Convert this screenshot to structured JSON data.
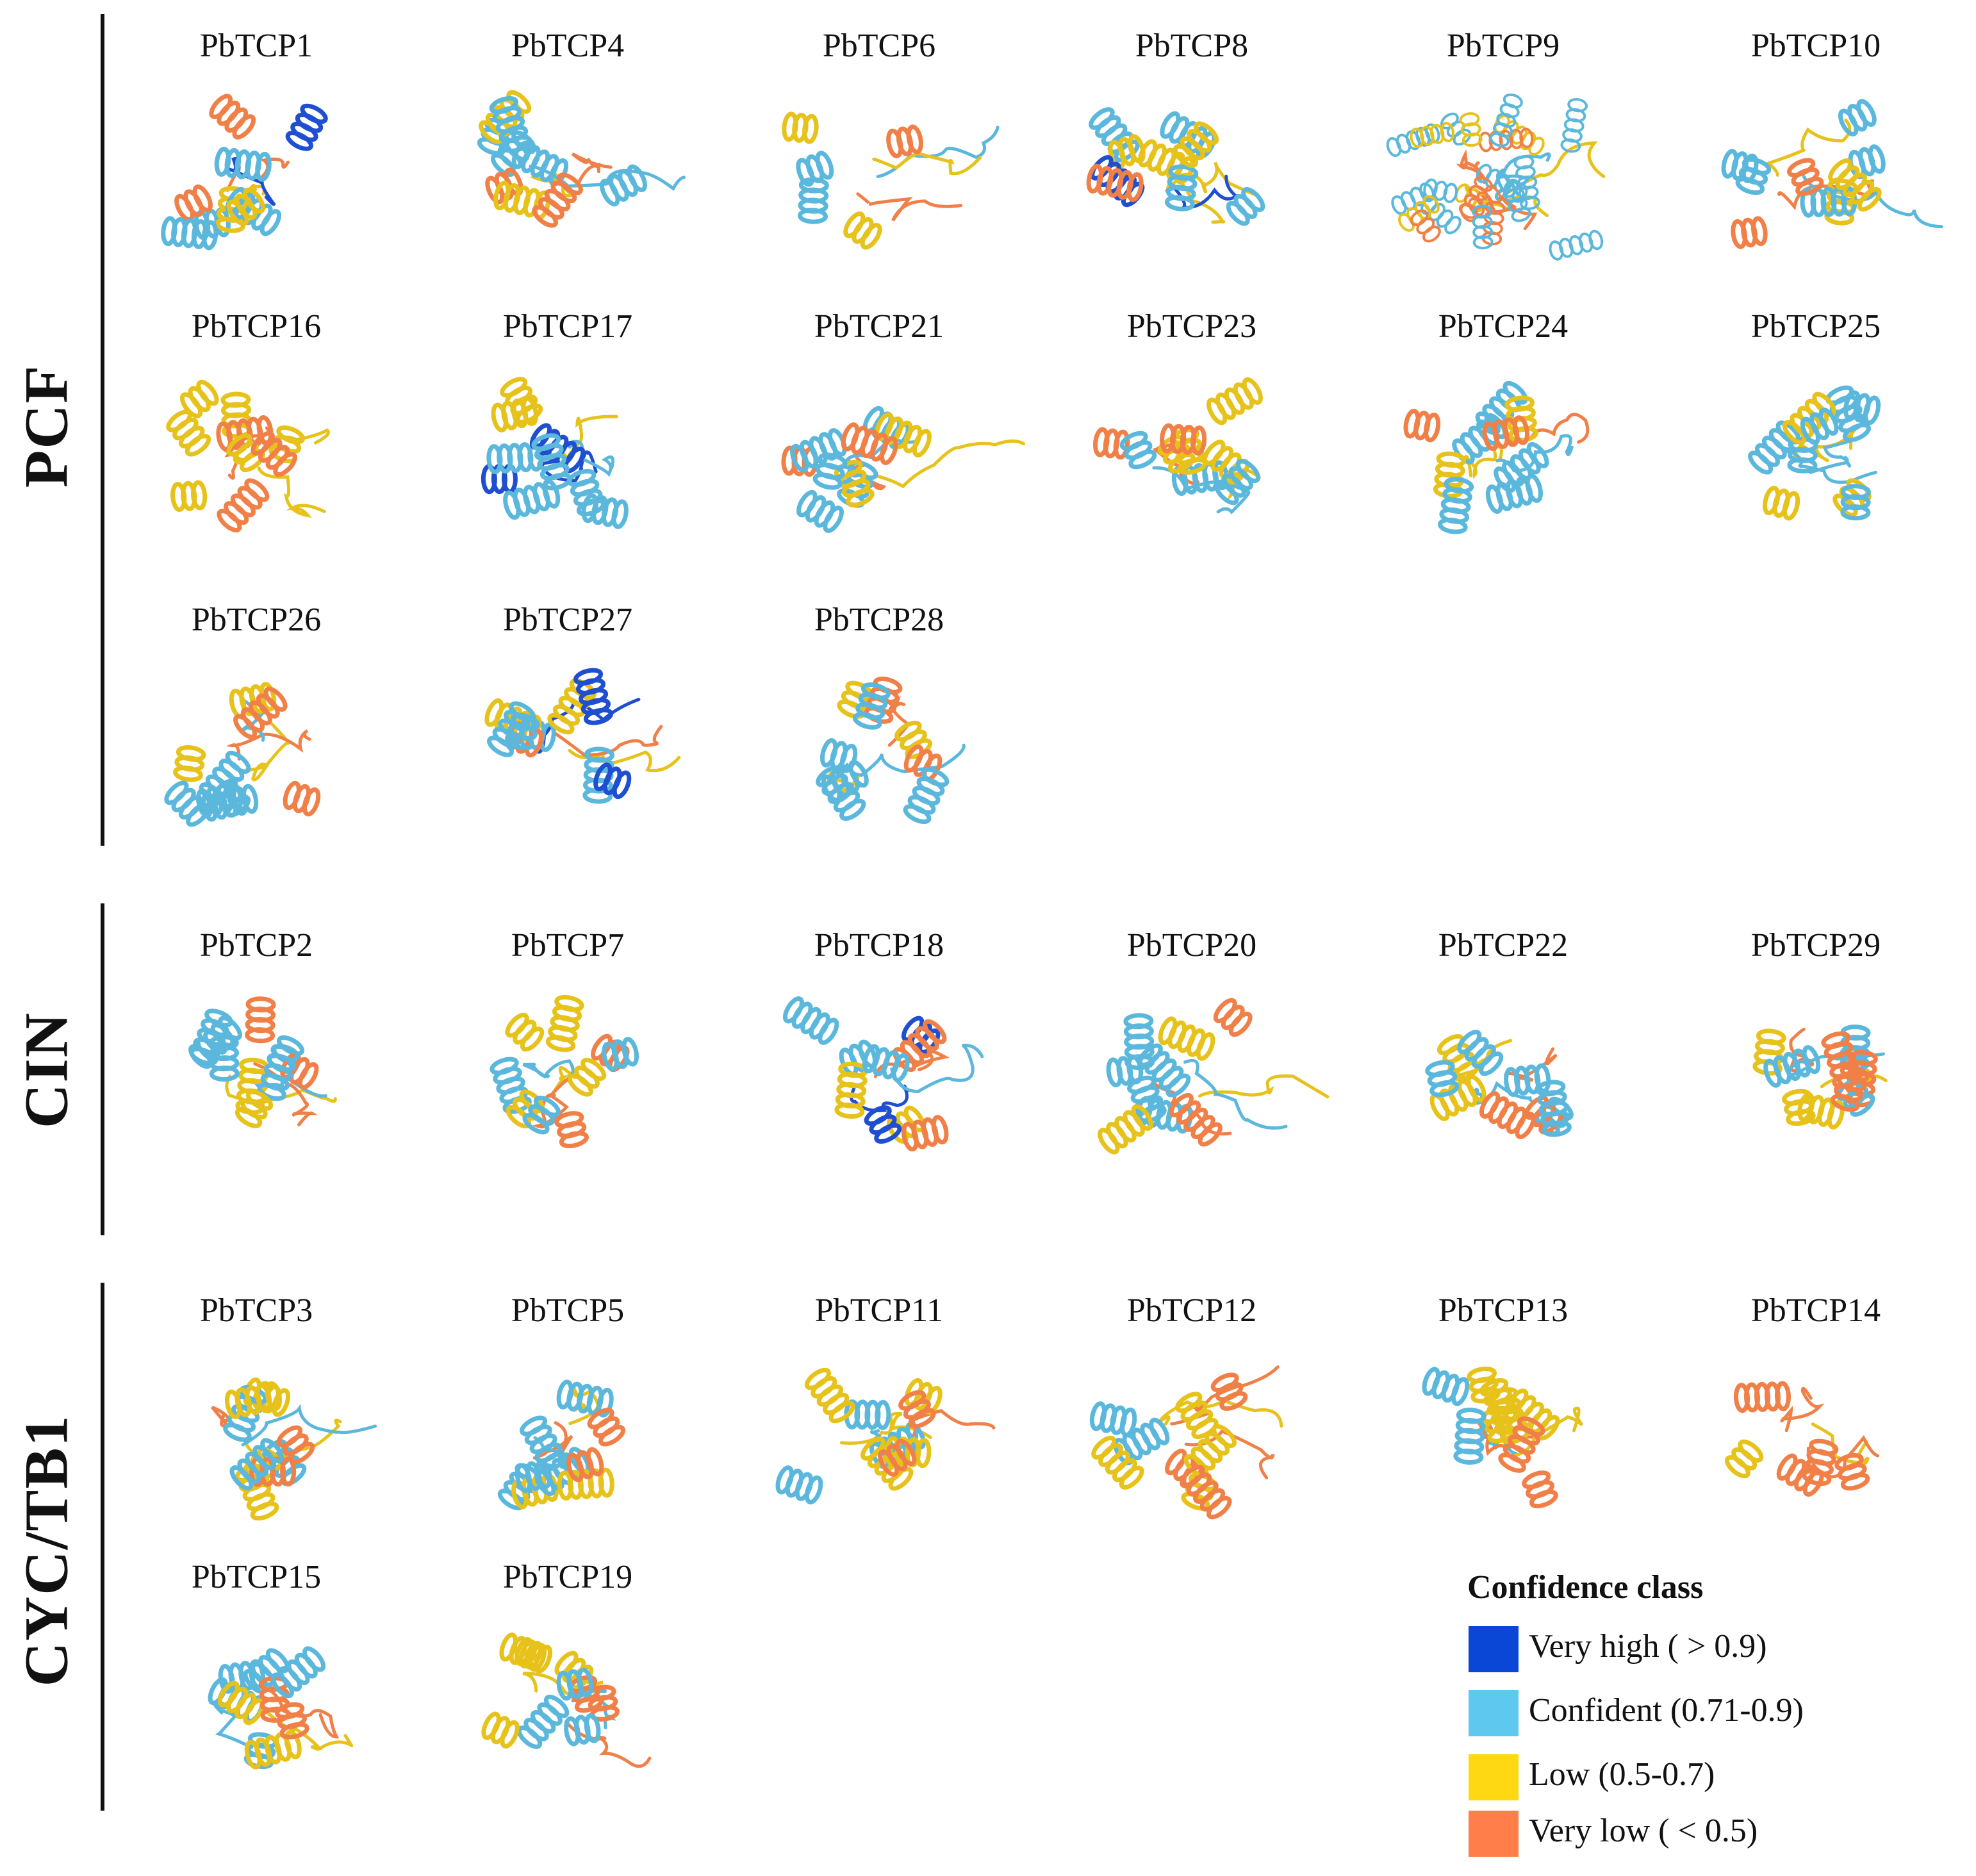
{
  "groups": [
    {
      "name": "PCF"
    },
    {
      "name": "CIN"
    },
    {
      "name": "CYC/TB1"
    }
  ],
  "proteins": [
    {
      "id": "PbTCP1",
      "style": "blue-core",
      "colors": [
        "#5bb8dc",
        "#5bb8dc",
        "#e6c21a",
        "#f08048",
        "#1f4fd0"
      ]
    },
    {
      "id": "PbTCP4",
      "style": "blue-core",
      "colors": [
        "#5bb8dc",
        "#5bb8dc",
        "#e6c21a",
        "#f08048"
      ]
    },
    {
      "id": "PbTCP6",
      "style": "sparse",
      "colors": [
        "#5bb8dc",
        "#e6c21a",
        "#f08048"
      ]
    },
    {
      "id": "PbTCP8",
      "style": "blue-core",
      "colors": [
        "#5bb8dc",
        "#5bb8dc",
        "#e6c21a",
        "#e6c21a",
        "#1f4fd0",
        "#f08048"
      ]
    },
    {
      "id": "PbTCP9",
      "style": "dense",
      "colors": [
        "#5bb8dc",
        "#5bb8dc",
        "#e6c21a",
        "#f08048"
      ]
    },
    {
      "id": "PbTCP10",
      "style": "blue-core",
      "colors": [
        "#5bb8dc",
        "#5bb8dc",
        "#e6c21a",
        "#f08048"
      ]
    },
    {
      "id": "PbTCP16",
      "style": "yellow-core",
      "colors": [
        "#e6c21a",
        "#e6c21a",
        "#f08048"
      ]
    },
    {
      "id": "PbTCP17",
      "style": "blue-core",
      "colors": [
        "#5bb8dc",
        "#5bb8dc",
        "#e6c21a",
        "#1f4fd0"
      ]
    },
    {
      "id": "PbTCP21",
      "style": "blue-core",
      "colors": [
        "#5bb8dc",
        "#5bb8dc",
        "#e6c21a",
        "#f08048"
      ]
    },
    {
      "id": "PbTCP23",
      "style": "blue-core",
      "colors": [
        "#5bb8dc",
        "#e6c21a",
        "#e6c21a",
        "#f08048"
      ]
    },
    {
      "id": "PbTCP24",
      "style": "blue-core",
      "colors": [
        "#5bb8dc",
        "#5bb8dc",
        "#e6c21a",
        "#f08048"
      ]
    },
    {
      "id": "PbTCP25",
      "style": "blue-core",
      "colors": [
        "#5bb8dc",
        "#5bb8dc",
        "#e6c21a"
      ]
    },
    {
      "id": "PbTCP26",
      "style": "blue-core",
      "colors": [
        "#5bb8dc",
        "#5bb8dc",
        "#e6c21a",
        "#f08048"
      ]
    },
    {
      "id": "PbTCP27",
      "style": "blue-core",
      "colors": [
        "#5bb8dc",
        "#5bb8dc",
        "#e6c21a",
        "#1f4fd0",
        "#f08048"
      ]
    },
    {
      "id": "PbTCP28",
      "style": "blue-core",
      "colors": [
        "#5bb8dc",
        "#5bb8dc",
        "#e6c21a",
        "#f08048"
      ]
    },
    {
      "id": "PbTCP2",
      "style": "blue-core",
      "colors": [
        "#5bb8dc",
        "#5bb8dc",
        "#e6c21a",
        "#f08048"
      ]
    },
    {
      "id": "PbTCP7",
      "style": "blue-core",
      "colors": [
        "#5bb8dc",
        "#e6c21a",
        "#e6c21a",
        "#f08048"
      ]
    },
    {
      "id": "PbTCP18",
      "style": "blue-core",
      "colors": [
        "#5bb8dc",
        "#e6c21a",
        "#f08048",
        "#1f4fd0"
      ]
    },
    {
      "id": "PbTCP20",
      "style": "blue-core",
      "colors": [
        "#5bb8dc",
        "#5bb8dc",
        "#e6c21a",
        "#f08048"
      ]
    },
    {
      "id": "PbTCP22",
      "style": "blue-core",
      "colors": [
        "#5bb8dc",
        "#5bb8dc",
        "#e6c21a",
        "#f08048"
      ]
    },
    {
      "id": "PbTCP29",
      "style": "blue-core",
      "colors": [
        "#5bb8dc",
        "#e6c21a",
        "#f08048"
      ]
    },
    {
      "id": "PbTCP3",
      "style": "mixed",
      "colors": [
        "#5bb8dc",
        "#e6c21a",
        "#e6c21a",
        "#f08048"
      ]
    },
    {
      "id": "PbTCP5",
      "style": "mixed",
      "colors": [
        "#5bb8dc",
        "#5bb8dc",
        "#e6c21a",
        "#f08048"
      ]
    },
    {
      "id": "PbTCP11",
      "style": "mixed",
      "colors": [
        "#5bb8dc",
        "#e6c21a",
        "#e6c21a",
        "#f08048"
      ]
    },
    {
      "id": "PbTCP12",
      "style": "mixed",
      "colors": [
        "#e6c21a",
        "#5bb8dc",
        "#e6c21a",
        "#f08048",
        "#f08048"
      ]
    },
    {
      "id": "PbTCP13",
      "style": "mixed",
      "colors": [
        "#e6c21a",
        "#e6c21a",
        "#5bb8dc",
        "#f08048"
      ]
    },
    {
      "id": "PbTCP14",
      "style": "sparse",
      "colors": [
        "#f08048",
        "#f08048",
        "#e6c21a"
      ]
    },
    {
      "id": "PbTCP15",
      "style": "mixed",
      "colors": [
        "#5bb8dc",
        "#5bb8dc",
        "#e6c21a",
        "#f08048"
      ]
    },
    {
      "id": "PbTCP19",
      "style": "mixed",
      "colors": [
        "#5bb8dc",
        "#e6c21a",
        "#e6c21a",
        "#f08048"
      ]
    }
  ],
  "legend": {
    "title": "Confidence class",
    "items": [
      {
        "label": "Very high ( > 0.9)",
        "color": "#0a47d6"
      },
      {
        "label": "Confident (0.71-0.9)",
        "color": "#5ec8ee"
      },
      {
        "label": "Low (0.5-0.7)",
        "color": "#ffd814"
      },
      {
        "label": "Very low ( < 0.5)",
        "color": "#ff7e4a"
      }
    ]
  }
}
